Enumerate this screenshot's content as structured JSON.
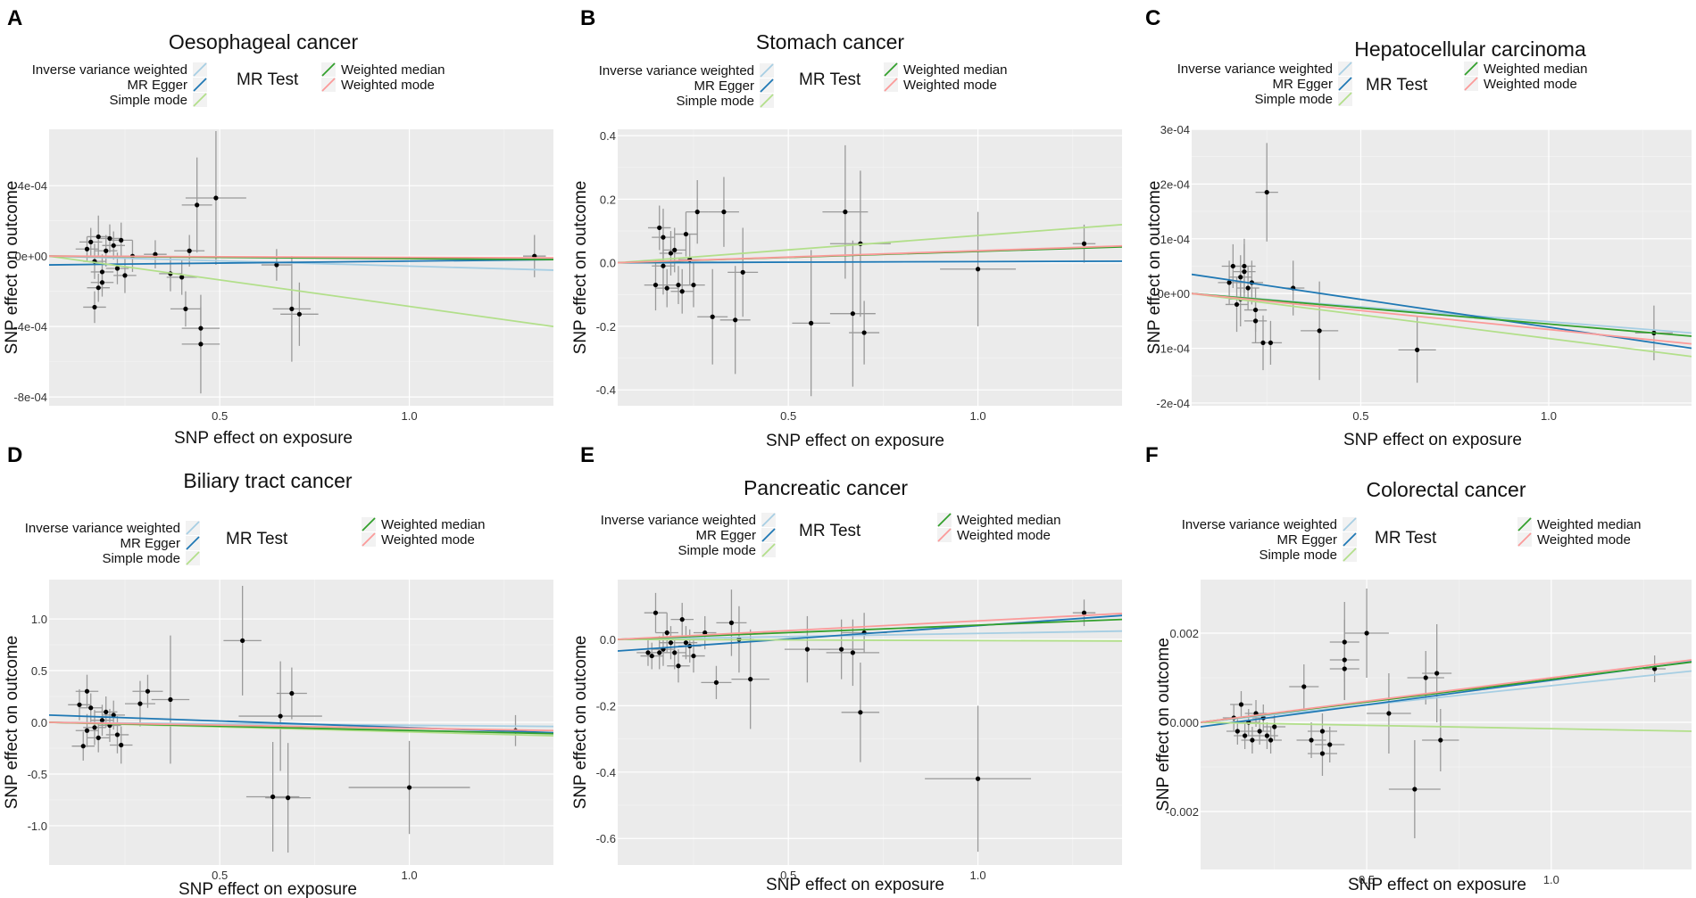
{
  "colors": {
    "ivw": "#a6cee3",
    "egger": "#1f78b4",
    "simple_mode": "#b2df8a",
    "weighted_median": "#33a02c",
    "weighted_mode": "#fb9a99"
  },
  "legend": {
    "title": "MR Test",
    "labels": [
      "Inverse variance weighted",
      "MR Egger",
      "Simple mode",
      "Weighted median",
      "Weighted mode"
    ]
  },
  "chart_data": [
    {
      "panel": "A",
      "type": "scatter",
      "title": "Oesophageal cancer",
      "xlabel": "SNP effect on exposure",
      "ylabel": "SNP effect on outcome",
      "xlim": [
        0.05,
        1.38
      ],
      "ylim": [
        -0.00085,
        0.00072
      ],
      "xticks": [
        0.5,
        1.0
      ],
      "xtick_labels": [
        "0.5",
        "1.0"
      ],
      "yticks": [
        -0.0008,
        -0.0004,
        0.0,
        0.0004
      ],
      "ytick_labels": [
        "-8e-04",
        "-4e-04",
        "0e+00",
        "4e-04"
      ],
      "points": [
        [
          0.15,
          4e-05,
          0.03,
          7e-05
        ],
        [
          0.16,
          8e-05,
          0.03,
          8e-05
        ],
        [
          0.17,
          -3e-05,
          0.03,
          0.0001
        ],
        [
          0.18,
          -0.00018,
          0.03,
          8e-05
        ],
        [
          0.18,
          0.00011,
          0.03,
          0.00012
        ],
        [
          0.19,
          -9e-05,
          0.03,
          0.0001
        ],
        [
          0.2,
          3e-05,
          0.03,
          9e-05
        ],
        [
          0.21,
          0.0001,
          0.03,
          8e-05
        ],
        [
          0.22,
          6e-05,
          0.03,
          8e-05
        ],
        [
          0.23,
          -7e-05,
          0.03,
          9e-05
        ],
        [
          0.24,
          9e-05,
          0.03,
          0.0001
        ],
        [
          0.17,
          -0.00029,
          0.03,
          9e-05
        ],
        [
          0.19,
          -0.00015,
          0.03,
          8e-05
        ],
        [
          0.25,
          -0.00011,
          0.03,
          0.0001
        ],
        [
          0.27,
          0.0,
          0.03,
          9e-05
        ],
        [
          0.33,
          1e-05,
          0.03,
          8e-05
        ],
        [
          0.37,
          -0.0001,
          0.03,
          0.0001
        ],
        [
          0.4,
          -0.00012,
          0.04,
          0.0001
        ],
        [
          0.41,
          -0.0003,
          0.04,
          0.0001
        ],
        [
          0.42,
          3e-05,
          0.04,
          9e-05
        ],
        [
          0.44,
          0.00029,
          0.04,
          0.00027
        ],
        [
          0.45,
          -0.00041,
          0.05,
          0.00012
        ],
        [
          0.45,
          -0.0005,
          0.05,
          0.00028
        ],
        [
          0.49,
          0.00033,
          0.08,
          0.00038
        ],
        [
          0.65,
          -5e-05,
          0.04,
          9e-05
        ],
        [
          0.69,
          -0.0003,
          0.05,
          0.0003
        ],
        [
          0.71,
          -0.00033,
          0.05,
          0.00018
        ],
        [
          1.33,
          0.0,
          0.03,
          0.00012
        ]
      ],
      "lines": {
        "ivw": [
          0.0,
          -8e-05
        ],
        "egger": [
          -5e-05,
          -2e-05
        ],
        "simple_mode": [
          0.0,
          -0.0004
        ],
        "weighted_median": [
          0.0,
          -2e-05
        ],
        "weighted_mode": [
          0.0,
          -1e-05
        ]
      }
    },
    {
      "panel": "B",
      "type": "scatter",
      "title": "Stomach cancer",
      "xlabel": "SNP effect on exposure",
      "ylabel": "SNP effect on outcome",
      "xlim": [
        0.05,
        1.38
      ],
      "ylim": [
        -0.45,
        0.42
      ],
      "xticks": [
        0.5,
        1.0
      ],
      "xtick_labels": [
        "0.5",
        "1.0"
      ],
      "yticks": [
        -0.4,
        -0.2,
        0.0,
        0.2,
        0.4
      ],
      "ytick_labels": [
        "-0.4",
        "-0.2",
        "0.0",
        "0.2",
        "0.4"
      ],
      "points": [
        [
          0.15,
          -0.07,
          0.03,
          0.08
        ],
        [
          0.16,
          0.11,
          0.03,
          0.07
        ],
        [
          0.17,
          -0.01,
          0.03,
          0.09
        ],
        [
          0.17,
          0.08,
          0.03,
          0.09
        ],
        [
          0.18,
          -0.08,
          0.03,
          0.06
        ],
        [
          0.19,
          0.03,
          0.03,
          0.07
        ],
        [
          0.2,
          0.04,
          0.03,
          0.07
        ],
        [
          0.21,
          -0.07,
          0.03,
          0.06
        ],
        [
          0.22,
          -0.09,
          0.03,
          0.07
        ],
        [
          0.23,
          0.09,
          0.03,
          0.07
        ],
        [
          0.24,
          0.01,
          0.03,
          0.08
        ],
        [
          0.25,
          -0.07,
          0.03,
          0.07
        ],
        [
          0.26,
          0.16,
          0.03,
          0.1
        ],
        [
          0.3,
          -0.17,
          0.04,
          0.15
        ],
        [
          0.33,
          0.16,
          0.04,
          0.11
        ],
        [
          0.36,
          -0.18,
          0.04,
          0.17
        ],
        [
          0.38,
          -0.03,
          0.04,
          0.14
        ],
        [
          0.56,
          -0.19,
          0.05,
          0.23
        ],
        [
          0.65,
          0.16,
          0.06,
          0.21
        ],
        [
          0.67,
          -0.16,
          0.06,
          0.23
        ],
        [
          0.69,
          0.06,
          0.08,
          0.23
        ],
        [
          0.7,
          -0.22,
          0.04,
          0.1
        ],
        [
          1.0,
          -0.02,
          0.1,
          0.18
        ],
        [
          1.28,
          0.06,
          0.03,
          0.06
        ]
      ],
      "lines": {
        "ivw": [
          0.0,
          0.005
        ],
        "egger": [
          0.0,
          0.005
        ],
        "simple_mode": [
          0.0,
          0.12
        ],
        "weighted_median": [
          0.0,
          0.05
        ],
        "weighted_mode": [
          0.0,
          0.053
        ]
      }
    },
    {
      "panel": "C",
      "type": "scatter",
      "title": "Hepatocellular carcinoma",
      "xlabel": "SNP effect on exposure",
      "ylabel": "SNP effect on outcome",
      "xlim": [
        0.05,
        1.38
      ],
      "ylim": [
        -0.000205,
        0.0003
      ],
      "xticks": [
        0.5,
        1.0
      ],
      "xtick_labels": [
        "0.5",
        "1.0"
      ],
      "yticks": [
        -0.0002,
        -0.0001,
        0.0,
        0.0001,
        0.0002,
        0.0003
      ],
      "ytick_labels": [
        "-2e-04",
        "-1e-04",
        "0e+00",
        "1e-04",
        "2e-04",
        "3e-04"
      ],
      "points": [
        [
          0.15,
          2e-05,
          0.03,
          4e-05
        ],
        [
          0.16,
          5e-05,
          0.03,
          4e-05
        ],
        [
          0.17,
          -2e-05,
          0.03,
          5e-05
        ],
        [
          0.18,
          3e-05,
          0.03,
          4e-05
        ],
        [
          0.18,
          -1e-05,
          0.03,
          5e-05
        ],
        [
          0.19,
          4e-05,
          0.03,
          5e-05
        ],
        [
          0.19,
          5e-05,
          0.03,
          5e-05
        ],
        [
          0.2,
          1e-05,
          0.03,
          4e-05
        ],
        [
          0.21,
          2e-05,
          0.03,
          4e-05
        ],
        [
          0.22,
          -5e-05,
          0.03,
          4e-05
        ],
        [
          0.22,
          -3e-05,
          0.03,
          4e-05
        ],
        [
          0.24,
          -9e-05,
          0.03,
          5e-05
        ],
        [
          0.25,
          0.000185,
          0.03,
          9e-05
        ],
        [
          0.26,
          -9e-05,
          0.03,
          4e-05
        ],
        [
          0.32,
          1e-05,
          0.03,
          5e-05
        ],
        [
          0.39,
          -6.8e-05,
          0.05,
          9e-05
        ],
        [
          0.65,
          -0.000103,
          0.05,
          6e-05
        ],
        [
          1.28,
          -7.2e-05,
          0.05,
          5e-05
        ]
      ],
      "lines": {
        "ivw": [
          0.0,
          -7.2e-05
        ],
        "egger": [
          3.5e-05,
          -0.0001
        ],
        "simple_mode": [
          0.0,
          -0.000115
        ],
        "weighted_median": [
          0.0,
          -7.8e-05
        ],
        "weighted_mode": [
          0.0,
          -9.2e-05
        ]
      }
    },
    {
      "panel": "D",
      "type": "scatter",
      "title": "Biliary tract cancer",
      "xlabel": "SNP effect on exposure",
      "ylabel": "SNP effect on outcome",
      "xlim": [
        0.05,
        1.38
      ],
      "ylim": [
        -1.38,
        1.38
      ],
      "xticks": [
        0.5,
        1.0
      ],
      "xtick_labels": [
        "0.5",
        "1.0"
      ],
      "yticks": [
        -1.0,
        -0.5,
        0.0,
        0.5,
        1.0
      ],
      "ytick_labels": [
        "-1.0",
        "-0.5",
        "0.0",
        "0.5",
        "1.0"
      ],
      "points": [
        [
          0.13,
          0.17,
          0.03,
          0.15
        ],
        [
          0.14,
          -0.23,
          0.03,
          0.14
        ],
        [
          0.15,
          -0.08,
          0.03,
          0.16
        ],
        [
          0.15,
          0.3,
          0.03,
          0.16
        ],
        [
          0.16,
          0.14,
          0.03,
          0.14
        ],
        [
          0.17,
          -0.05,
          0.03,
          0.17
        ],
        [
          0.18,
          -0.15,
          0.03,
          0.14
        ],
        [
          0.19,
          0.02,
          0.03,
          0.15
        ],
        [
          0.2,
          0.1,
          0.03,
          0.15
        ],
        [
          0.21,
          -0.03,
          0.03,
          0.16
        ],
        [
          0.22,
          0.07,
          0.03,
          0.14
        ],
        [
          0.23,
          -0.12,
          0.03,
          0.18
        ],
        [
          0.24,
          -0.22,
          0.03,
          0.18
        ],
        [
          0.29,
          0.18,
          0.04,
          0.22
        ],
        [
          0.31,
          0.3,
          0.04,
          0.16
        ],
        [
          0.37,
          0.22,
          0.05,
          0.62
        ],
        [
          0.56,
          0.79,
          0.05,
          0.53
        ],
        [
          0.64,
          -0.72,
          0.07,
          0.53
        ],
        [
          0.66,
          0.06,
          0.11,
          0.53
        ],
        [
          0.68,
          -0.73,
          0.06,
          0.53
        ],
        [
          0.69,
          0.28,
          0.04,
          0.25
        ],
        [
          1.0,
          -0.63,
          0.16,
          0.45
        ],
        [
          1.28,
          -0.08,
          0.03,
          0.15
        ]
      ],
      "lines": {
        "ivw": [
          0.0,
          -0.04
        ],
        "egger": [
          0.07,
          -0.1
        ],
        "simple_mode": [
          0.0,
          -0.13
        ],
        "weighted_median": [
          0.0,
          -0.11
        ],
        "weighted_mode": [
          0.0,
          -0.08
        ]
      }
    },
    {
      "panel": "E",
      "type": "scatter",
      "title": "Pancreatic cancer",
      "xlabel": "SNP effect on exposure",
      "ylabel": "SNP effect on outcome",
      "xlim": [
        0.05,
        1.38
      ],
      "ylim": [
        -0.68,
        0.18
      ],
      "xticks": [
        0.5,
        1.0
      ],
      "xtick_labels": [
        "0.5",
        "1.0"
      ],
      "yticks": [
        -0.6,
        -0.4,
        -0.2,
        0.0
      ],
      "ytick_labels": [
        "-0.6",
        "-0.4",
        "-0.2",
        "0.0"
      ],
      "points": [
        [
          0.13,
          -0.04,
          0.03,
          0.04
        ],
        [
          0.14,
          -0.05,
          0.03,
          0.04
        ],
        [
          0.15,
          0.08,
          0.03,
          0.06
        ],
        [
          0.16,
          -0.04,
          0.03,
          0.05
        ],
        [
          0.17,
          -0.03,
          0.03,
          0.05
        ],
        [
          0.18,
          0.02,
          0.03,
          0.06
        ],
        [
          0.19,
          -0.01,
          0.03,
          0.05
        ],
        [
          0.2,
          -0.04,
          0.03,
          0.05
        ],
        [
          0.21,
          -0.08,
          0.03,
          0.05
        ],
        [
          0.22,
          0.06,
          0.03,
          0.05
        ],
        [
          0.23,
          -0.01,
          0.03,
          0.05
        ],
        [
          0.24,
          -0.02,
          0.03,
          0.05
        ],
        [
          0.25,
          -0.05,
          0.03,
          0.05
        ],
        [
          0.28,
          0.02,
          0.03,
          0.05
        ],
        [
          0.31,
          -0.13,
          0.04,
          0.05
        ],
        [
          0.35,
          0.05,
          0.04,
          0.1
        ],
        [
          0.37,
          0.0,
          0.04,
          0.1
        ],
        [
          0.4,
          -0.12,
          0.05,
          0.15
        ],
        [
          0.55,
          -0.03,
          0.06,
          0.1
        ],
        [
          0.64,
          -0.03,
          0.06,
          0.09
        ],
        [
          0.67,
          -0.04,
          0.07,
          0.1
        ],
        [
          0.69,
          -0.22,
          0.05,
          0.15
        ],
        [
          0.7,
          0.02,
          0.06,
          0.06
        ],
        [
          1.0,
          -0.42,
          0.14,
          0.22
        ],
        [
          1.28,
          0.08,
          0.03,
          0.04
        ]
      ],
      "lines": {
        "ivw": [
          0.0,
          0.025
        ],
        "egger": [
          -0.035,
          0.072
        ],
        "simple_mode": [
          0.0,
          -0.005
        ],
        "weighted_median": [
          0.0,
          0.06
        ],
        "weighted_mode": [
          0.0,
          0.078
        ]
      }
    },
    {
      "panel": "F",
      "type": "scatter",
      "title": "Colorectal cancer",
      "xlabel": "SNP effect on exposure",
      "ylabel": "SNP effect on outcome",
      "xlim": [
        0.05,
        1.38
      ],
      "ylim": [
        -0.0033,
        0.0032
      ],
      "xticks": [
        0.5,
        1.0
      ],
      "xtick_labels": [
        "0.5",
        "1.0"
      ],
      "yticks": [
        -0.002,
        0.0,
        0.002
      ],
      "ytick_labels": [
        "-0.002",
        "0.000",
        "0.002"
      ],
      "points": [
        [
          0.14,
          0.0001,
          0.03,
          0.0003
        ],
        [
          0.15,
          -0.0002,
          0.03,
          0.0003
        ],
        [
          0.16,
          0.0004,
          0.03,
          0.0003
        ],
        [
          0.17,
          -0.0003,
          0.03,
          0.0003
        ],
        [
          0.18,
          0.0,
          0.03,
          0.0003
        ],
        [
          0.19,
          -0.0004,
          0.03,
          0.0003
        ],
        [
          0.2,
          0.0002,
          0.03,
          0.0003
        ],
        [
          0.21,
          -0.0002,
          0.03,
          0.0003
        ],
        [
          0.22,
          0.0001,
          0.03,
          0.0003
        ],
        [
          0.23,
          -0.0003,
          0.03,
          0.0003
        ],
        [
          0.24,
          -0.0004,
          0.03,
          0.0003
        ],
        [
          0.25,
          -0.0001,
          0.03,
          0.0003
        ],
        [
          0.33,
          0.0008,
          0.04,
          0.0005
        ],
        [
          0.35,
          -0.0004,
          0.04,
          0.0004
        ],
        [
          0.38,
          -0.0002,
          0.04,
          0.0004
        ],
        [
          0.38,
          -0.0007,
          0.04,
          0.0005
        ],
        [
          0.4,
          -0.0005,
          0.04,
          0.0004
        ],
        [
          0.44,
          0.0018,
          0.04,
          0.0009
        ],
        [
          0.44,
          0.0014,
          0.04,
          0.0009
        ],
        [
          0.44,
          0.0012,
          0.04,
          0.0007
        ],
        [
          0.5,
          0.002,
          0.06,
          0.001
        ],
        [
          0.56,
          0.0002,
          0.06,
          0.0009
        ],
        [
          0.63,
          -0.0015,
          0.07,
          0.0011
        ],
        [
          0.66,
          0.001,
          0.05,
          0.0006
        ],
        [
          0.69,
          0.0011,
          0.04,
          0.0011
        ],
        [
          0.7,
          -0.0004,
          0.05,
          0.0007
        ],
        [
          1.28,
          0.0012,
          0.03,
          0.0003
        ]
      ],
      "lines": {
        "ivw": [
          0.0,
          0.00115
        ],
        "egger": [
          -0.0001,
          0.00136
        ],
        "simple_mode": [
          0.0,
          -0.0002
        ],
        "weighted_median": [
          0.0,
          0.00135
        ],
        "weighted_mode": [
          0.0,
          0.0014
        ]
      }
    }
  ]
}
